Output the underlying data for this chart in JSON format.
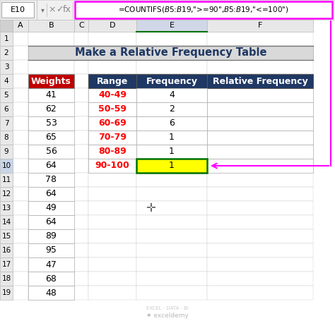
{
  "title": "Make a Relative Frequency Table",
  "formula_bar_cell": "E10",
  "formula_text": "=COUNTIFS($B$5:$B$19,\">= 90\",$B$5:$B$19,\"<= 100\")",
  "weights": [
    41,
    62,
    53,
    65,
    56,
    64,
    78,
    64,
    49,
    64,
    89,
    95,
    47,
    68,
    48
  ],
  "ranges": [
    "40-49",
    "50-59",
    "60-69",
    "70-79",
    "80-89",
    "90-100"
  ],
  "frequencies": [
    4,
    2,
    6,
    1,
    1,
    1
  ],
  "weights_header": "Weights",
  "freq_header": "Frequency",
  "range_header": "Range",
  "rel_freq_header": "Relative Frequency",
  "header_bg": "#1F3864",
  "weights_header_bg": "#C00000",
  "range_color": "#FF0000",
  "title_color": "#1F3864",
  "header_text_color": "#FFFFFF",
  "highlighted_cell_bg": "#FFFF00",
  "arrow_color": "#FF00FF",
  "formula_bar_border": "#FF00FF",
  "selected_cell_border": "#007000",
  "col_header_bg": "#E8E8E8",
  "col_E_header_bg": "#D0D8E8",
  "row_num_bg": "#E8E8E8",
  "row10_num_bg": "#C8D4E8",
  "title_bg": "#D9D9D9",
  "fb_bg": "#F0F0F0",
  "watermark_color": "#BBBBBB",
  "watermark2_color": "#CCCCCC"
}
